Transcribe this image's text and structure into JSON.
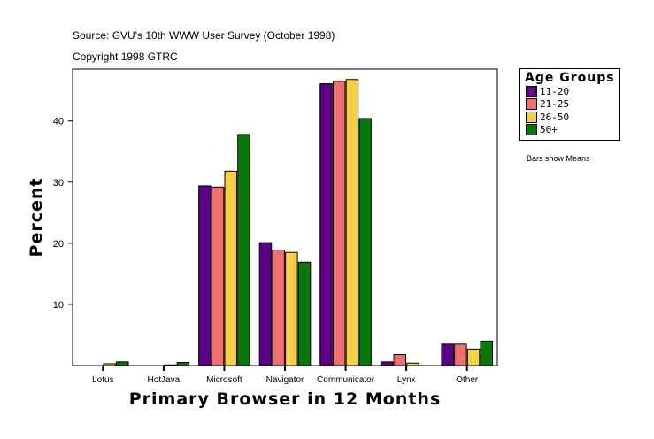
{
  "header": {
    "source": "Source: GVU's 10th WWW User Survey (October 1998)",
    "copyright": "Copyright 1998 GTRC"
  },
  "note": "Bars show Means",
  "chart_data": {
    "type": "bar",
    "xlabel": "Primary Browser in 12 Months",
    "ylabel": "Percent",
    "ylim": [
      0,
      48.5
    ],
    "yticks": [
      10,
      20,
      30,
      40
    ],
    "categories": [
      "Lotus",
      "HotJava",
      "Microsoft",
      "Navigator",
      "Communicator",
      "Lynx",
      "Other"
    ],
    "legend_title": "Age Groups",
    "legend_placement": "right",
    "series": [
      {
        "name": "11-20",
        "color": "#5c0087",
        "values": [
          0,
          0,
          29.4,
          20.1,
          46.1,
          0.6,
          3.5
        ]
      },
      {
        "name": "21-25",
        "color": "#f07070",
        "values": [
          0,
          0,
          29.2,
          18.9,
          46.5,
          1.8,
          3.5
        ]
      },
      {
        "name": "26-50",
        "color": "#f8d048",
        "values": [
          0.3,
          0.1,
          31.8,
          18.5,
          46.8,
          0.4,
          2.7
        ]
      },
      {
        "name": "50+",
        "color": "#087808",
        "values": [
          0.6,
          0.5,
          37.8,
          16.9,
          40.4,
          0,
          4.0
        ]
      }
    ]
  }
}
